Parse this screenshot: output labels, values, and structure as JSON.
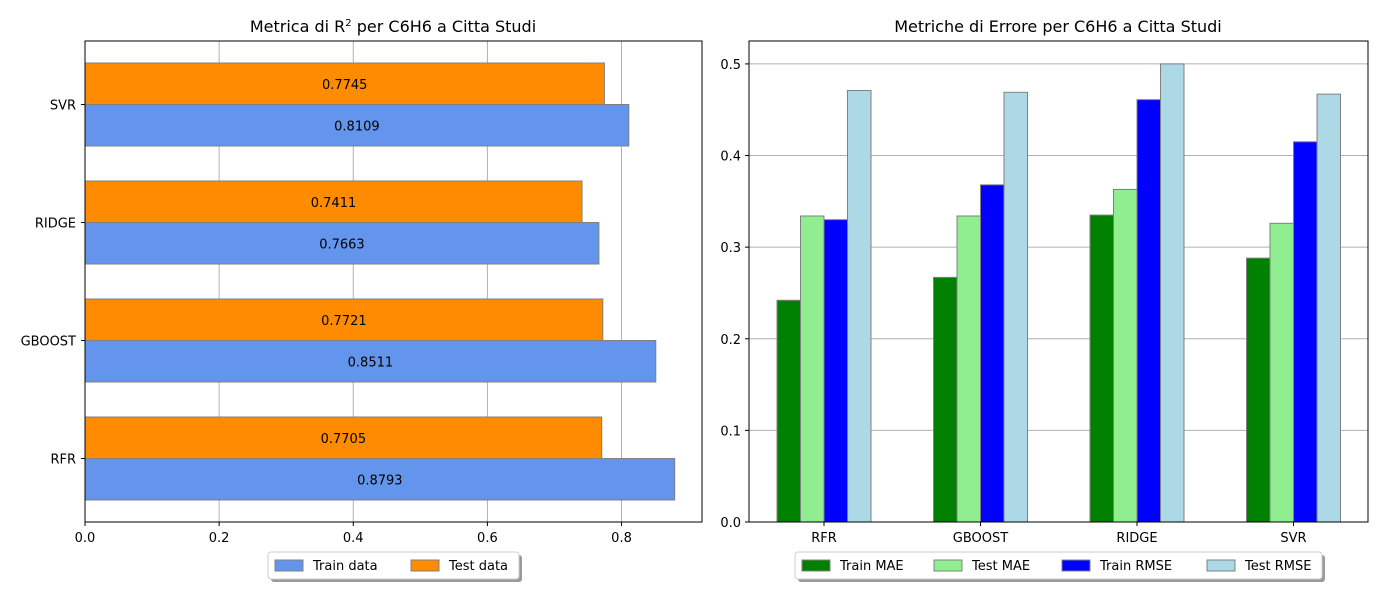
{
  "chart_data": [
    {
      "type": "bar",
      "orientation": "horizontal",
      "title_prefix": "Metrica di R",
      "title_sup": "2",
      "title_suffix": " per C6H6 a Citta Studi",
      "categories": [
        "RFR",
        "GBOOST",
        "RIDGE",
        "SVR"
      ],
      "xlim": [
        0,
        0.92
      ],
      "xticks": [
        "0.0",
        "0.2",
        "0.4",
        "0.6",
        "0.8"
      ],
      "grid": "vertical",
      "legend_placement": "bottom-center",
      "series": [
        {
          "name": "Train data",
          "color": "#6495ED",
          "values": [
            0.8793,
            0.8511,
            0.7663,
            0.8109
          ],
          "labels": [
            "0.8793",
            "0.8511",
            "0.7663",
            "0.8109"
          ]
        },
        {
          "name": "Test data",
          "color": "#FF8C00",
          "values": [
            0.7705,
            0.7721,
            0.7411,
            0.7745
          ],
          "labels": [
            "0.7705",
            "0.7721",
            "0.7411",
            "0.7745"
          ]
        }
      ]
    },
    {
      "type": "bar",
      "orientation": "vertical",
      "title": "Metriche di Errore per C6H6 a Citta Studi",
      "categories": [
        "RFR",
        "GBOOST",
        "RIDGE",
        "SVR"
      ],
      "ylim": [
        0,
        0.525
      ],
      "yticks": [
        "0.0",
        "0.1",
        "0.2",
        "0.3",
        "0.4",
        "0.5"
      ],
      "grid": "horizontal",
      "legend_placement": "bottom-center",
      "series": [
        {
          "name": "Train MAE",
          "color": "#008000",
          "values": [
            0.242,
            0.267,
            0.335,
            0.288
          ]
        },
        {
          "name": "Test MAE",
          "color": "#90EE90",
          "values": [
            0.334,
            0.334,
            0.363,
            0.326
          ]
        },
        {
          "name": "Train RMSE",
          "color": "#0000FF",
          "values": [
            0.33,
            0.368,
            0.461,
            0.415
          ]
        },
        {
          "name": "Test RMSE",
          "color": "#ADD8E6",
          "values": [
            0.471,
            0.469,
            0.5,
            0.467
          ]
        }
      ]
    }
  ]
}
